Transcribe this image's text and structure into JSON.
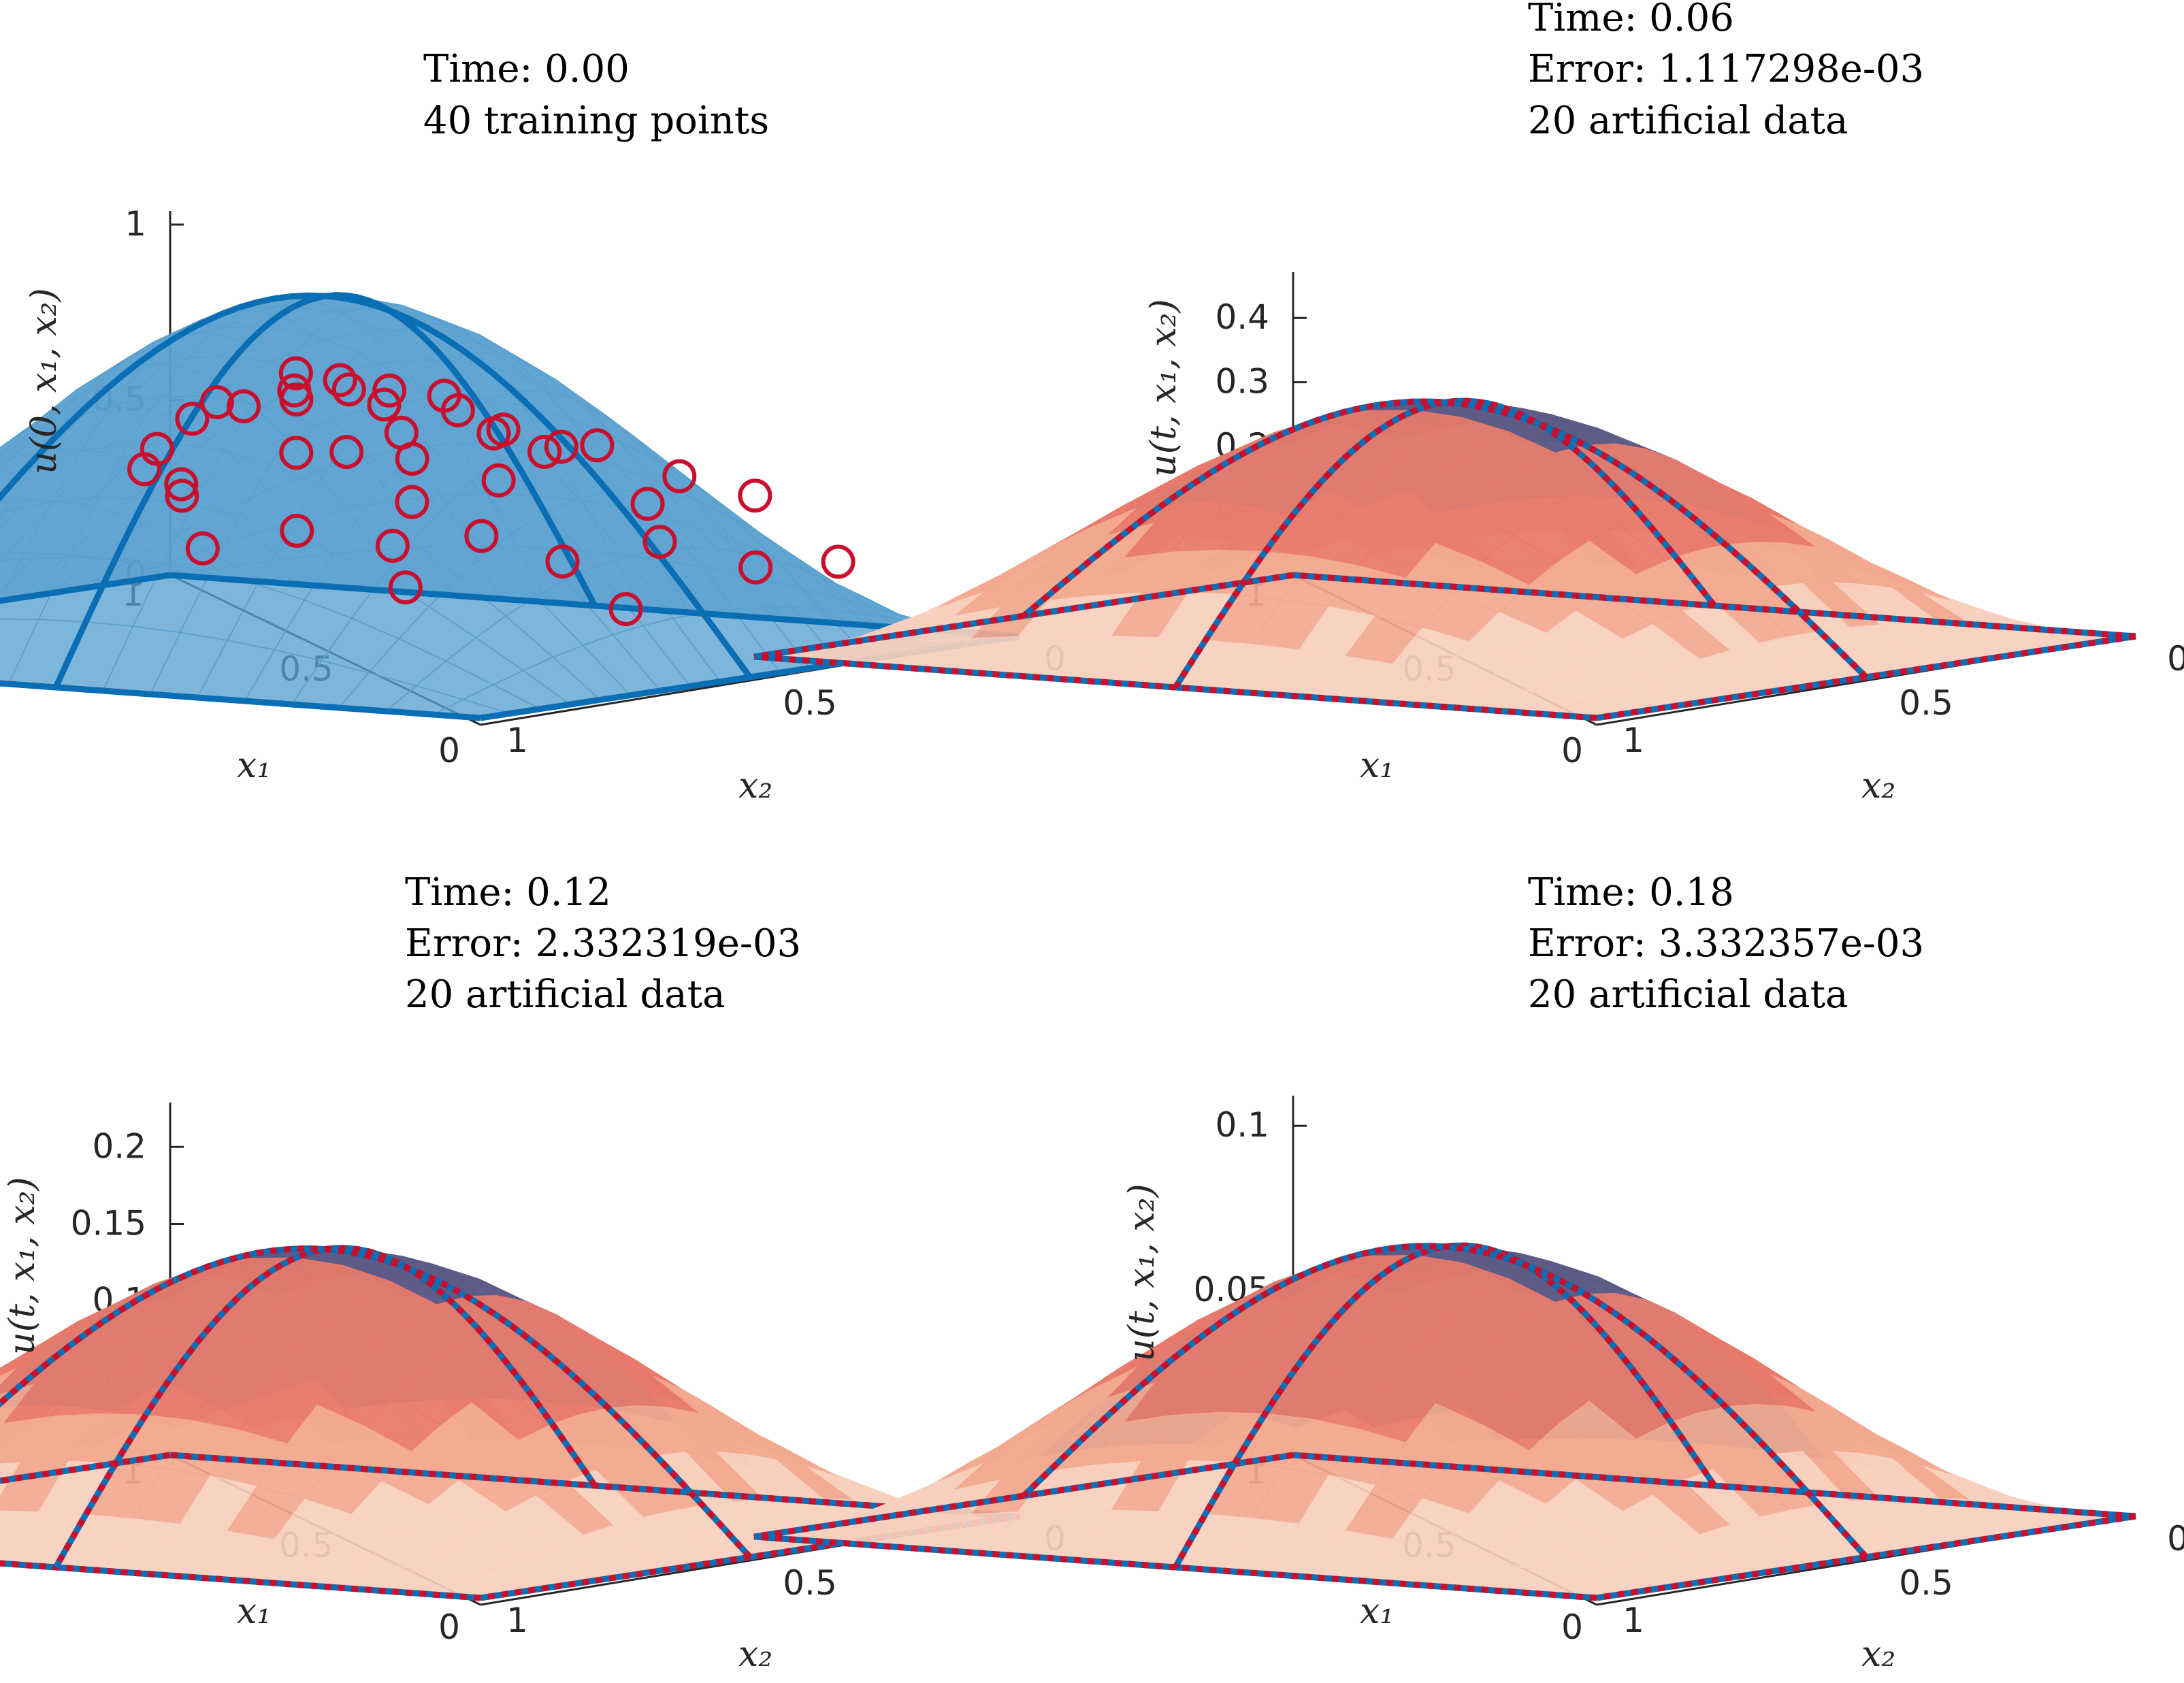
{
  "figure": {
    "panels_count": 4
  },
  "chart_data": [
    {
      "type": "surface3d",
      "title_lines": [
        "Time:  0.00",
        "40 training points"
      ],
      "time": 0.0,
      "training_points": 40,
      "surface_function": "u(0,x1,x2) = sin(pi*x1)*sin(pi*x2)",
      "zlabel": "u(0, x₁, x₂)",
      "xlabel": "x₁",
      "ylabel": "x₂",
      "zlim": [
        0,
        1
      ],
      "zticks": [
        "0",
        "0.5",
        "1"
      ],
      "x1ticks": [
        "0",
        "0.5",
        "1"
      ],
      "x2ticks": [
        "0",
        "0.5",
        "1"
      ],
      "surface_color": "#5aa0cf",
      "edge_color": "#0a6eb4",
      "marker_color": "#c8102e",
      "markers": [
        [
          0.12,
          0.95,
          0.34
        ],
        [
          0.22,
          0.78,
          0.65
        ],
        [
          0.07,
          0.62,
          0.21
        ],
        [
          0.27,
          0.55,
          0.66
        ],
        [
          0.36,
          0.5,
          0.74
        ],
        [
          0.47,
          0.52,
          0.77
        ],
        [
          0.56,
          0.46,
          0.76
        ],
        [
          0.33,
          0.33,
          0.56
        ],
        [
          0.42,
          0.38,
          0.66
        ],
        [
          0.6,
          0.4,
          0.69
        ],
        [
          0.71,
          0.37,
          0.63
        ],
        [
          0.21,
          0.3,
          0.49
        ],
        [
          0.14,
          0.27,
          0.44
        ],
        [
          0.55,
          0.28,
          0.55
        ],
        [
          0.79,
          0.29,
          0.55
        ],
        [
          0.64,
          0.24,
          0.47
        ],
        [
          0.48,
          0.21,
          0.41
        ],
        [
          0.75,
          0.16,
          0.43
        ],
        [
          0.33,
          0.17,
          0.36
        ],
        [
          0.86,
          0.2,
          0.33
        ],
        [
          0.91,
          0.12,
          0.27
        ],
        [
          0.84,
          0.3,
          0.4
        ],
        [
          0.45,
          0.46,
          0.73
        ],
        [
          0.38,
          0.58,
          0.73
        ],
        [
          0.52,
          0.62,
          0.71
        ],
        [
          0.66,
          0.56,
          0.55
        ],
        [
          0.28,
          0.44,
          0.58
        ],
        [
          0.18,
          0.5,
          0.63
        ],
        [
          0.62,
          0.15,
          0.31
        ],
        [
          0.57,
          0.1,
          0.21
        ],
        [
          0.36,
          0.1,
          0.23
        ],
        [
          0.26,
          0.08,
          0.17
        ],
        [
          0.7,
          0.06,
          0.15
        ],
        [
          0.8,
          0.08,
          0.18
        ],
        [
          0.93,
          0.05,
          0.1
        ],
        [
          0.5,
          0.06,
          0.14
        ],
        [
          0.15,
          0.1,
          0.21
        ],
        [
          0.43,
          0.28,
          0.58
        ],
        [
          0.68,
          0.27,
          0.62
        ],
        [
          0.58,
          0.33,
          0.68
        ]
      ]
    },
    {
      "type": "surface3d",
      "title_lines": [
        "Time:  0.06",
        "Error:  1.117298e-03",
        "20 artificial data"
      ],
      "time": 0.06,
      "error": "1.117298e-03",
      "artificial_data": 20,
      "peak_value": 0.38,
      "zlabel": "u(t, x₁, x₂)",
      "xlabel": "x₁",
      "ylabel": "x₂",
      "zlim": [
        0,
        0.45
      ],
      "zticks": [
        "0",
        "0.1",
        "0.2",
        "0.3",
        "0.4"
      ],
      "x1ticks": [
        "0",
        "0.5",
        "1"
      ],
      "x2ticks": [
        "0",
        "0.5",
        "1"
      ],
      "gray_region_fraction": 0.55
    },
    {
      "type": "surface3d",
      "title_lines": [
        "Time:  0.12",
        "Error:  2.332319e-03",
        "20 artificial data"
      ],
      "time": 0.12,
      "error": "2.332319e-03",
      "artificial_data": 20,
      "peak_value": 0.18,
      "zlabel": "u(t, x₁, x₂)",
      "xlabel": "x₁",
      "ylabel": "x₂",
      "zlim": [
        0,
        0.22
      ],
      "zticks": [
        "0",
        "0.05",
        "0.1",
        "0.15",
        "0.2"
      ],
      "x1ticks": [
        "0",
        "0.5",
        "1"
      ],
      "x2ticks": [
        "0",
        "0.5",
        "1"
      ],
      "gray_region_fraction": 0.7
    },
    {
      "type": "surface3d",
      "title_lines": [
        "Time:  0.18",
        "Error:  3.332357e-03",
        "20 artificial data"
      ],
      "time": 0.18,
      "error": "3.332357e-03",
      "artificial_data": 20,
      "peak_value": 0.085,
      "zlabel": "u(t, x₁, x₂)",
      "xlabel": "x₁",
      "ylabel": "x₂",
      "zlim": [
        0,
        0.105
      ],
      "zticks": [
        "0",
        "0.05",
        "0.1"
      ],
      "x1ticks": [
        "0",
        "0.5",
        "1"
      ],
      "x2ticks": [
        "0",
        "0.5",
        "1"
      ],
      "gray_region_fraction": 0.8
    }
  ],
  "colors": {
    "surface_blue": "#5aa0cf",
    "edge_blue": "#0a6eb4",
    "marker_red": "#c8102e",
    "salmon_light": "#f7cfbd",
    "salmon_mid": "#f2a88e",
    "salmon_dark": "#e8796a",
    "slate_blue": "#6d7fa3",
    "dark_slate": "#5d5a87",
    "axis": "#262626"
  }
}
